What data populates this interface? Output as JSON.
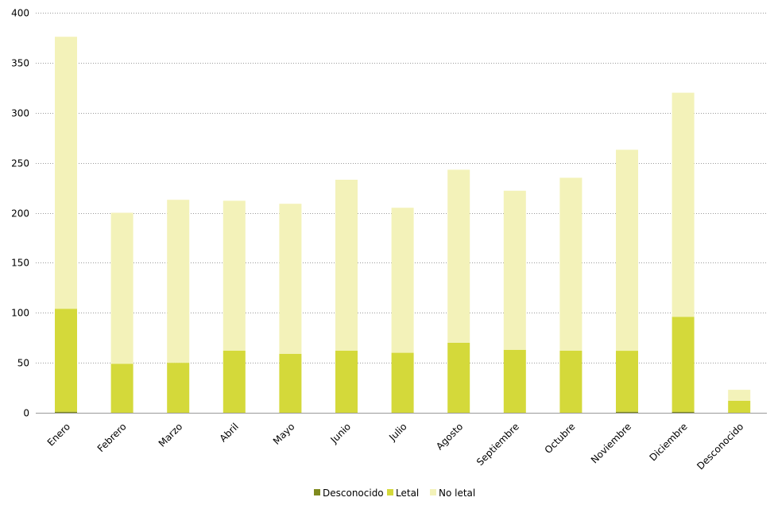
{
  "chart_data": {
    "type": "bar",
    "stacked": true,
    "categories": [
      "Enero",
      "Febrero",
      "Marzo",
      "Abril",
      "Mayo",
      "Junio",
      "Julio",
      "Agosto",
      "Septiembre",
      "Octubre",
      "Noviembre",
      "Diciembre",
      "Desconocido"
    ],
    "series": [
      {
        "name": "Desconocido",
        "color": "#7f8a1e",
        "values": [
          1,
          0,
          0,
          0,
          0,
          0,
          0,
          0,
          0,
          0,
          1,
          1,
          0
        ]
      },
      {
        "name": "Letal",
        "color": "#d4d93a",
        "values": [
          103,
          49,
          50,
          62,
          59,
          62,
          60,
          70,
          63,
          62,
          61,
          95,
          12
        ]
      },
      {
        "name": "No letal",
        "color": "#f3f2b9",
        "values": [
          272,
          151,
          163,
          150,
          150,
          171,
          145,
          173,
          159,
          173,
          201,
          224,
          11
        ]
      }
    ],
    "ylim": [
      0,
      400
    ],
    "yticks": [
      0,
      50,
      100,
      150,
      200,
      250,
      300,
      350,
      400
    ],
    "title": "",
    "xlabel": "",
    "ylabel": "",
    "grid": "horizontal dotted",
    "legend_position": "bottom-center"
  }
}
